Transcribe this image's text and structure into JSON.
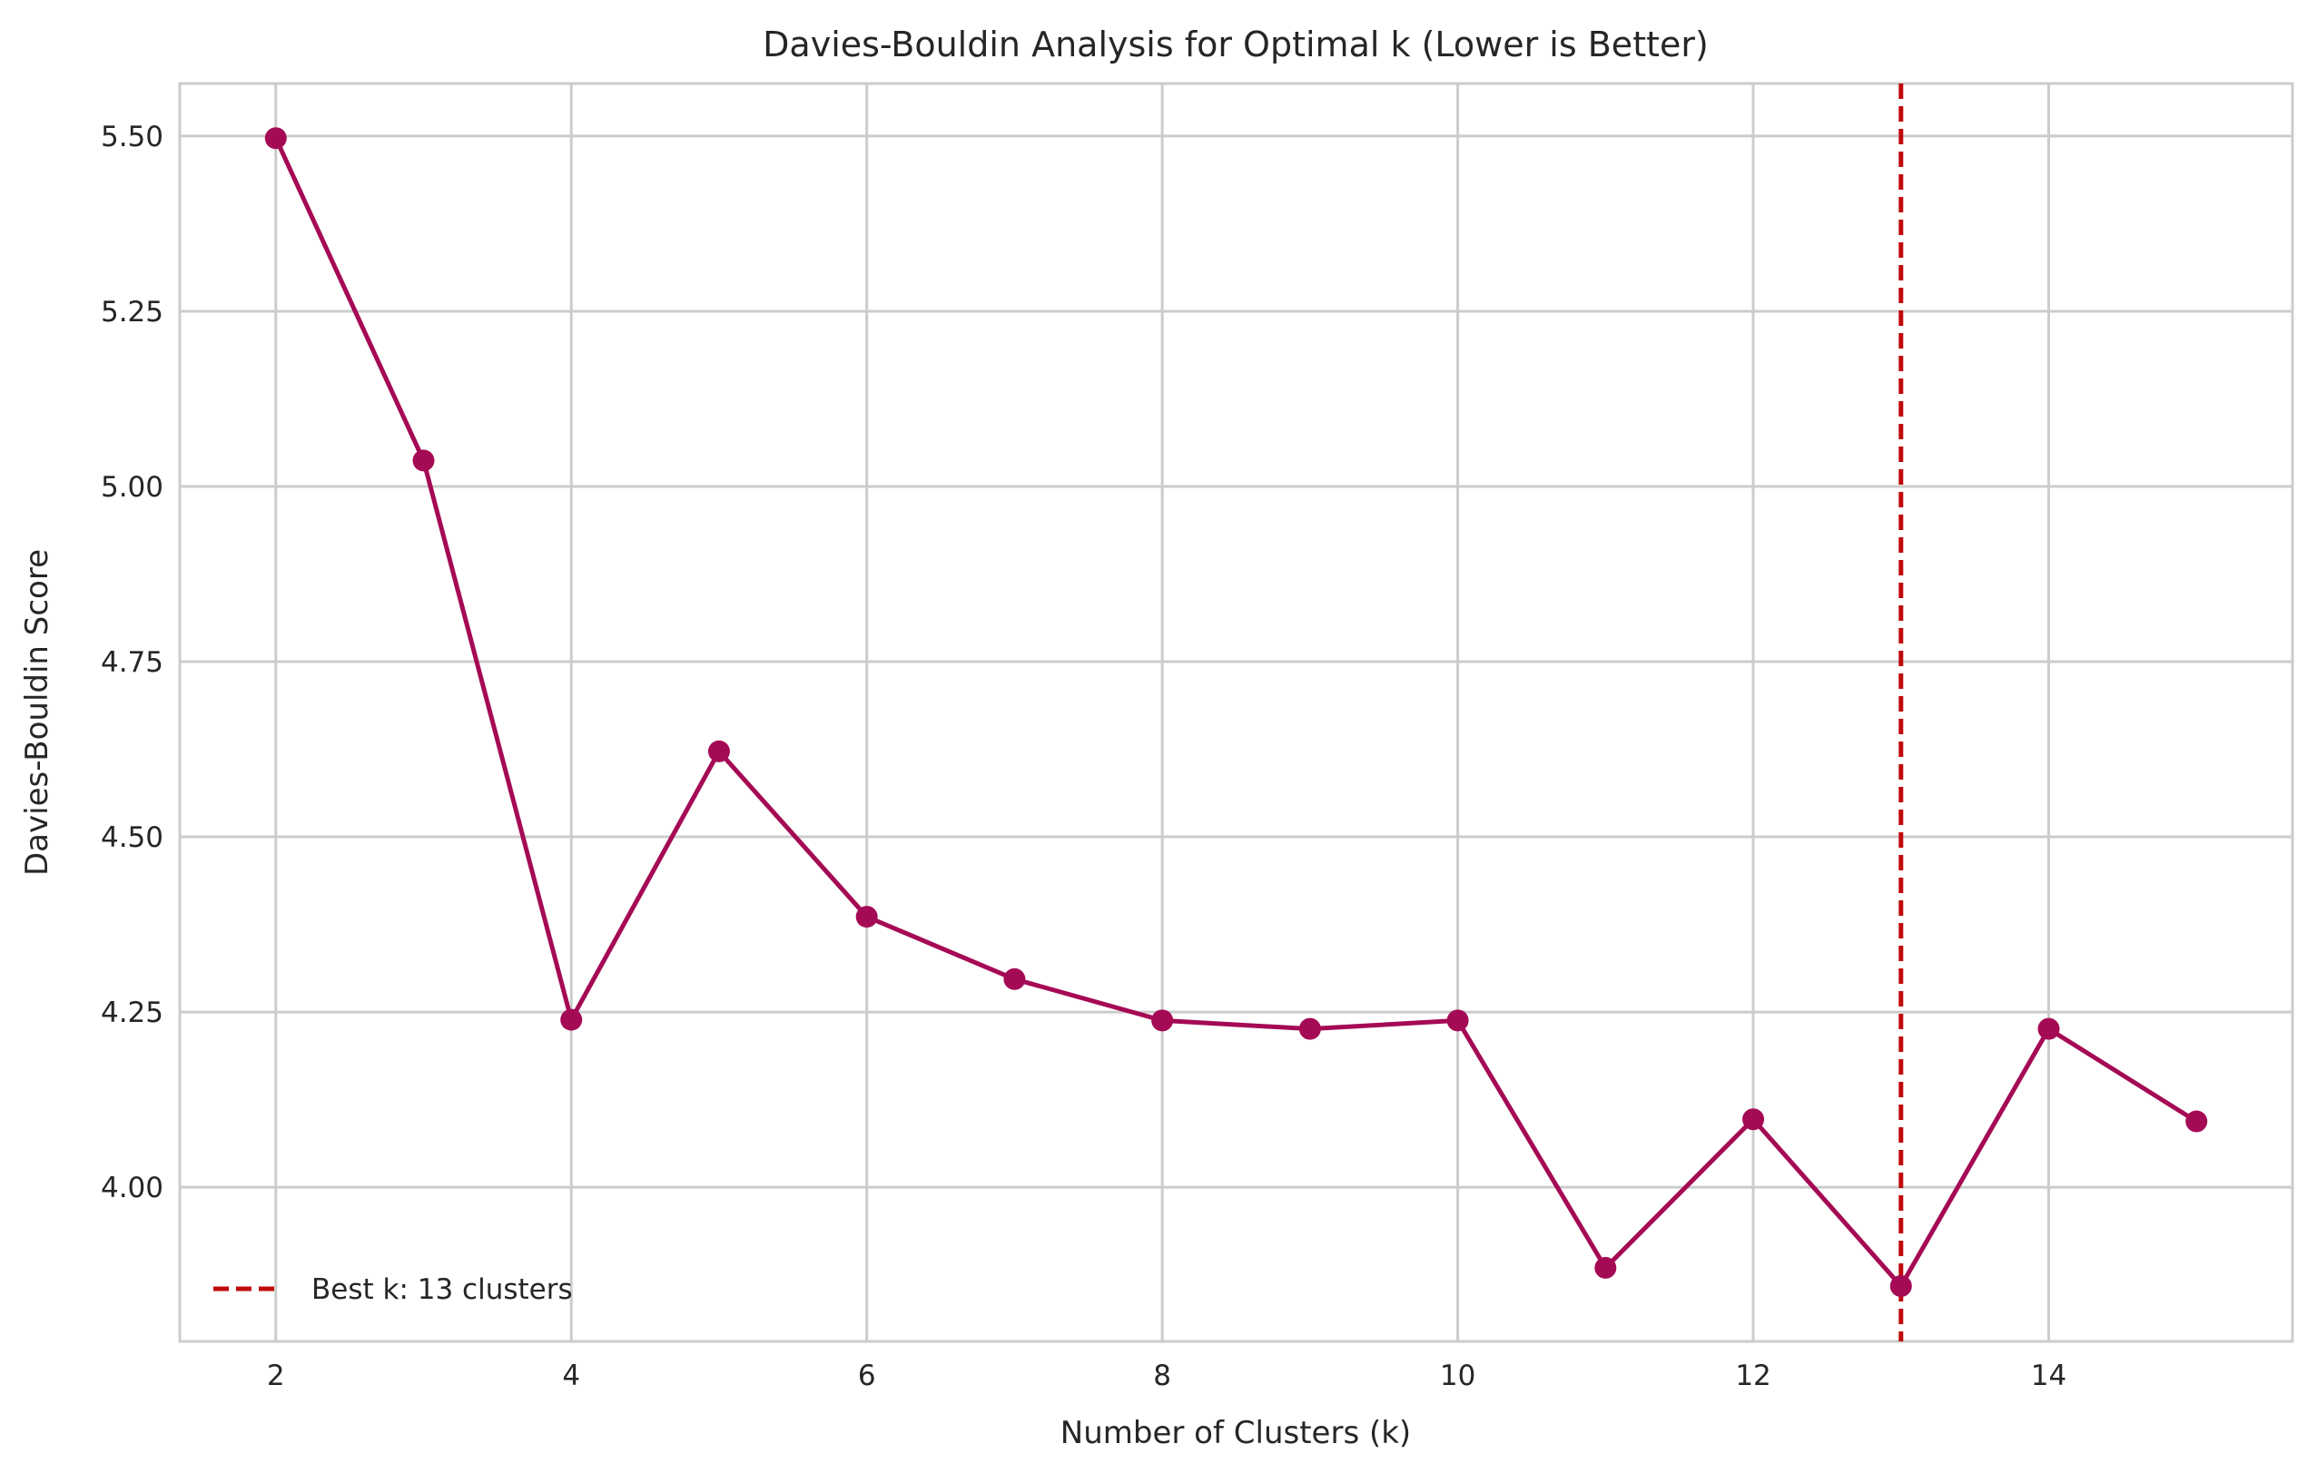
{
  "chart_data": {
    "type": "line",
    "title": "Davies-Bouldin Analysis for Optimal k (Lower is Better)",
    "xlabel": "Number of Clusters (k)",
    "ylabel": "Davies-Bouldin Score",
    "x": [
      2,
      3,
      4,
      5,
      6,
      7,
      8,
      9,
      10,
      11,
      12,
      13,
      14,
      15
    ],
    "series": [
      {
        "values": [
          5.497,
          5.037,
          4.239,
          4.622,
          4.386,
          4.297,
          4.238,
          4.226,
          4.238,
          3.885,
          4.097,
          3.859,
          4.226,
          4.094
        ],
        "color": "#a50a55",
        "marker": "circle"
      }
    ],
    "xlim": [
      1.35,
      15.65
    ],
    "ylim": [
      3.78,
      5.575
    ],
    "xticks": [
      2,
      4,
      6,
      8,
      10,
      12,
      14
    ],
    "xtick_labels": [
      "2",
      "4",
      "6",
      "8",
      "10",
      "12",
      "14"
    ],
    "yticks": [
      4.0,
      4.25,
      4.5,
      4.75,
      5.0,
      5.25,
      5.5
    ],
    "ytick_labels": [
      "4.00",
      "4.25",
      "4.50",
      "4.75",
      "5.00",
      "5.25",
      "5.50"
    ],
    "reference_line": {
      "orientation": "vertical",
      "x": 13,
      "style": "dashed",
      "color": "#c00a0a",
      "label": "Best k: 13 clusters"
    },
    "grid": true,
    "legend_position": "lower-left"
  }
}
